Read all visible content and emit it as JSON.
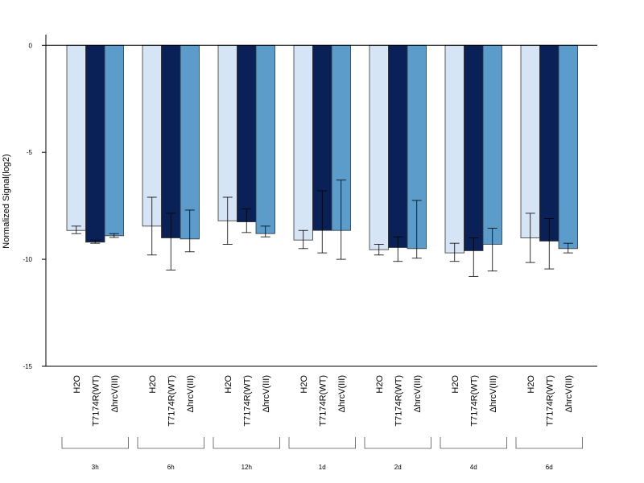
{
  "chart_data": {
    "type": "bar",
    "title": "",
    "xlabel": "",
    "ylabel": "Normalized Signal(log2)",
    "ylim": [
      -15,
      0.5
    ],
    "yticks": [
      0,
      -5,
      -10,
      -15
    ],
    "ytick_labels": [
      "0",
      "-5",
      "-10",
      "-15"
    ],
    "groups": [
      "3h",
      "6h",
      "12h",
      "1d",
      "2d",
      "4d",
      "6d"
    ],
    "bar_labels": [
      "H2O",
      "T7174R(WT)",
      "ΔhrcV(III)"
    ],
    "series": [
      {
        "label": "H2O",
        "color": "#d6e5f5",
        "values": [
          -8.65,
          -8.45,
          -8.2,
          -9.1,
          -9.55,
          -9.7,
          -9.0
        ],
        "error_low": [
          -8.8,
          -9.8,
          -9.3,
          -9.5,
          -9.8,
          -10.1,
          -10.15
        ],
        "error_high": [
          -8.45,
          -7.1,
          -7.1,
          -8.65,
          -9.3,
          -9.25,
          -7.85
        ]
      },
      {
        "label": "T7174R(WT)",
        "color": "#0a2158",
        "values": [
          -9.2,
          -9.0,
          -8.25,
          -8.65,
          -9.45,
          -9.6,
          -9.15
        ],
        "error_low": [
          -9.25,
          -10.5,
          -8.75,
          -9.7,
          -10.1,
          -10.8,
          -10.45
        ],
        "error_high": [
          -9.1,
          -7.85,
          -7.65,
          -6.8,
          -8.95,
          -9.0,
          -8.1
        ]
      },
      {
        "label": "ΔhrcV(III)",
        "color": "#5b9ccb",
        "values": [
          -8.9,
          -9.05,
          -8.8,
          -8.65,
          -9.5,
          -9.3,
          -9.5
        ],
        "error_low": [
          -8.98,
          -9.65,
          -8.95,
          -10.0,
          -9.95,
          -10.55,
          -9.7
        ],
        "error_high": [
          -8.8,
          -7.7,
          -8.45,
          -6.3,
          -7.25,
          -8.55,
          -9.25
        ]
      }
    ]
  }
}
